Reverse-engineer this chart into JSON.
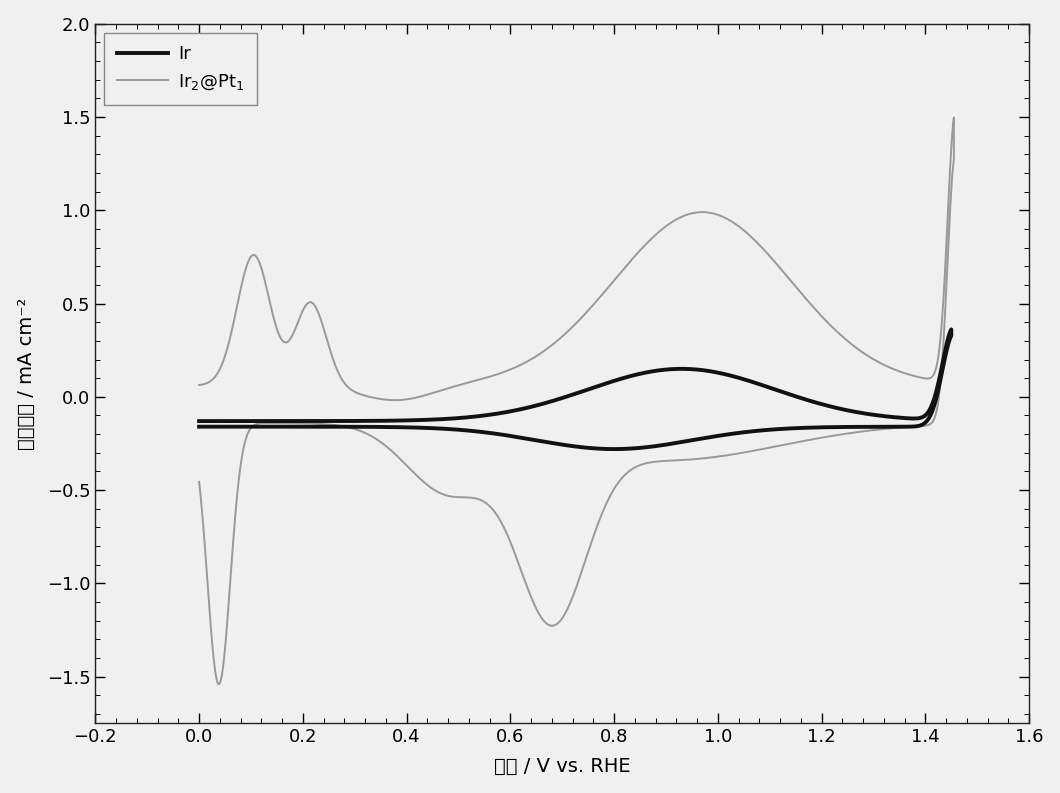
{
  "xlabel": "电位 / V vs. RHE",
  "ylabel": "电流密度 / mA cm⁻²",
  "xlim": [
    -0.2,
    1.6
  ],
  "ylim": [
    -1.75,
    2.0
  ],
  "xticks": [
    -0.2,
    0.0,
    0.2,
    0.4,
    0.6,
    0.8,
    1.0,
    1.2,
    1.4,
    1.6
  ],
  "yticks": [
    -1.5,
    -1.0,
    -0.5,
    0.0,
    0.5,
    1.0,
    1.5,
    2.0
  ],
  "ir_color": "#111111",
  "ir2pt1_color": "#999999",
  "ir_linewidth": 2.8,
  "ir2pt1_linewidth": 1.4,
  "legend_label_ir": "Ir",
  "legend_label_ir2pt1": "Ir$_2$@Pt$_1$",
  "background_color": "#f0f0f0",
  "tick_labelsize": 13,
  "label_fontsize": 14
}
